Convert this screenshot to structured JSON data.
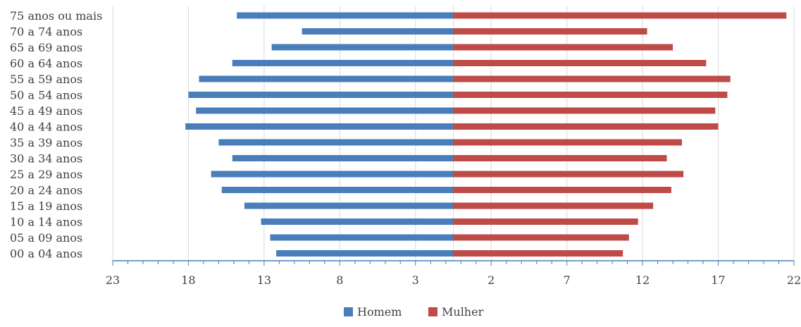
{
  "chart_data": {
    "type": "bar",
    "orientation": "horizontal",
    "layout": "population-pyramid",
    "categories": [
      "75 anos ou mais",
      "70 a 74 anos",
      "65 a 69 anos",
      "60 a 64 anos",
      "55 a 59 anos",
      "50 a 54 anos",
      "45 a 49 anos",
      "40 a 44 anos",
      "35 a 39 anos",
      "30 a 34 anos",
      "25 a 29 anos",
      "20 a 24 anos",
      "15 a 19 anos",
      "10 a 14 anos",
      "05 a 09 anos",
      "00 a 04 anos"
    ],
    "series": [
      {
        "name": "Homem",
        "side": "left",
        "color": "#4a7ebb",
        "values": [
          14.3,
          10.0,
          12.0,
          14.6,
          16.8,
          17.5,
          17.0,
          17.7,
          15.5,
          14.6,
          16.0,
          15.3,
          13.8,
          12.7,
          12.1,
          11.7
        ]
      },
      {
        "name": "Mulher",
        "side": "right",
        "color": "#be4b48",
        "values": [
          22.0,
          12.8,
          14.5,
          16.7,
          18.3,
          18.1,
          17.3,
          17.5,
          15.1,
          14.1,
          15.2,
          14.4,
          13.2,
          12.2,
          11.6,
          11.2
        ]
      }
    ],
    "x_ticks": [
      "23",
      "18",
      "13",
      "8",
      "3",
      "2",
      "7",
      "12",
      "17",
      "22"
    ],
    "xlim": [
      -22.5,
      22.5
    ],
    "grid": "vertical",
    "legend": "bottom-center",
    "title": "",
    "xlabel": "",
    "ylabel": ""
  }
}
